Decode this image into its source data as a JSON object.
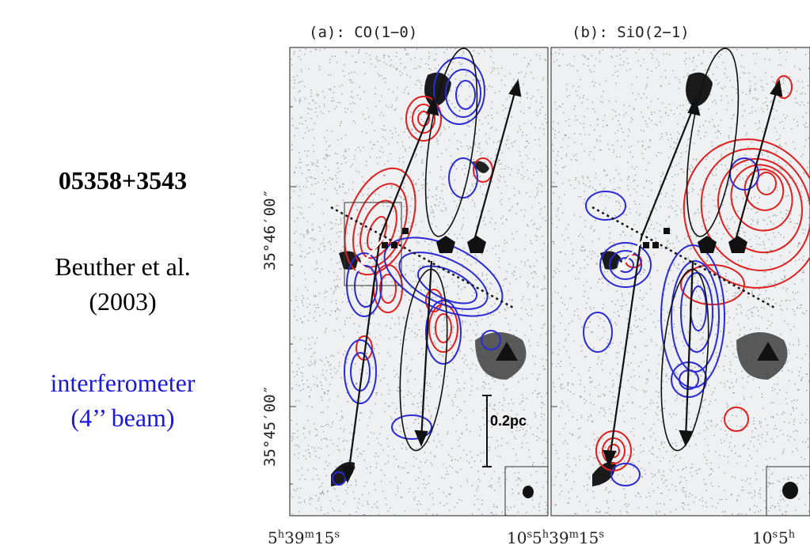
{
  "left_text": {
    "source_name": "05358+3543",
    "reference_line1": "Beuther et al.",
    "reference_line2": "(2003)",
    "instrument_line1": "interferometer",
    "instrument_line2": "(4’’ beam)"
  },
  "panels": [
    {
      "title": "(a): CO(1−0)"
    },
    {
      "title": "(b): SiO(2−1)"
    }
  ],
  "axes": {
    "y_ticks": [
      "35°46′00″",
      "35°45′00″"
    ],
    "x_ticks": {
      "left_ra": "5h39m15s",
      "mid_sec": "10s",
      "mid_ra": "5h39m15s",
      "right_sec": "10s",
      "right_ra": "5h"
    }
  },
  "scale_bar": {
    "label": "0.2pc"
  },
  "colors": {
    "blueshifted": "#2b2bd6",
    "redshifted": "#e02020",
    "background_noise": "#9aa3a8",
    "instrument_text": "#1a1ad6"
  }
}
